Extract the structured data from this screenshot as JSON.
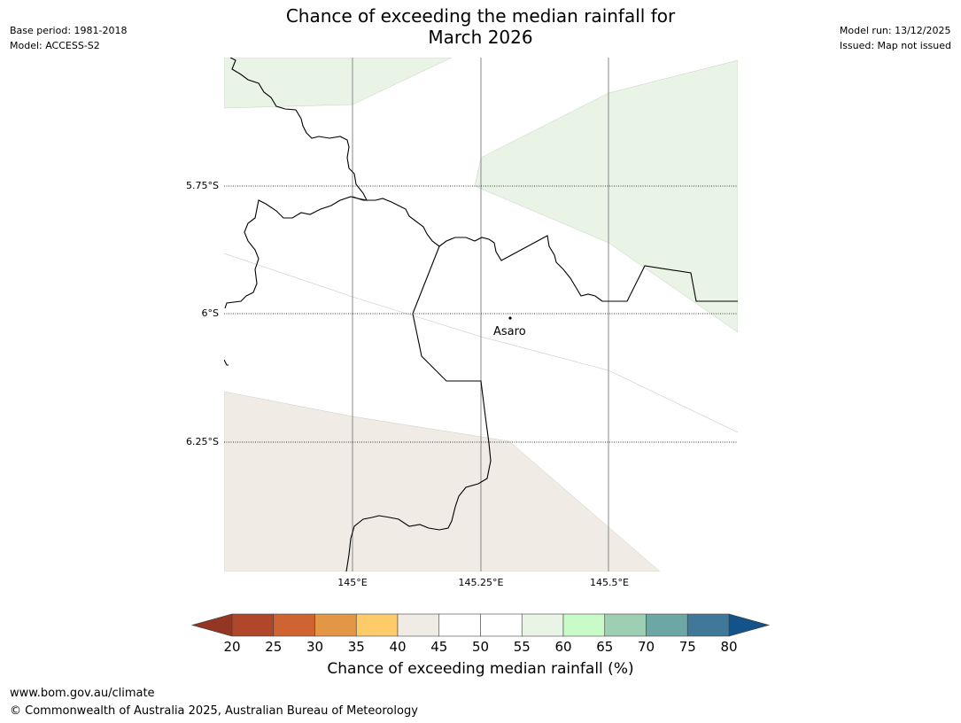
{
  "title": {
    "line1": "Chance of exceeding the median rainfall for",
    "line2": "March 2026"
  },
  "meta": {
    "base_period": "Base period: 1981-2018",
    "model": "Model: ACCESS-S2",
    "model_run": "Model run: 13/12/2025",
    "issued": "Issued: Map not issued"
  },
  "map": {
    "lat_labels": [
      "5.75°S",
      "6°S",
      "6.25°S"
    ],
    "lon_labels": [
      "145°E",
      "145.25°E",
      "145.5°E"
    ],
    "place": "Asaro",
    "colors": {
      "light_green": "#e9f4e7",
      "beige": "#f0ebe4",
      "border": "#000000",
      "grid": "#888888"
    }
  },
  "colorbar": {
    "ticks": [
      "20",
      "25",
      "30",
      "35",
      "40",
      "45",
      "50",
      "55",
      "60",
      "65",
      "70",
      "75",
      "80"
    ],
    "colors": [
      "#b0472a",
      "#cf6331",
      "#e39646",
      "#fdcb69",
      "#f0ebe4",
      "#ffffff",
      "#ffffff",
      "#e9f4e7",
      "#c9fbc9",
      "#9dcfb5",
      "#6ca6a5",
      "#3f7898"
    ],
    "low_extend_color": "#933623",
    "high_extend_color": "#14528a",
    "label": "Chance of exceeding median rainfall (%)"
  },
  "footer": {
    "url": "www.bom.gov.au/climate",
    "copyright": "© Commonwealth of Australia 2025, Australian Bureau of Meteorology"
  }
}
